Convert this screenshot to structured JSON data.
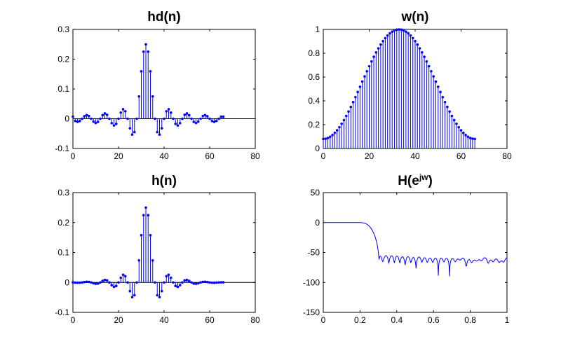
{
  "chart_data": [
    {
      "type": "stem",
      "title": "hd(n)",
      "xlim": [
        0,
        80
      ],
      "ylim": [
        -0.1,
        0.3
      ],
      "xticks": [
        "0",
        "20",
        "40",
        "60",
        "80"
      ],
      "yticks": [
        "-0.1",
        "0",
        "0.1",
        "0.2",
        "0.3"
      ],
      "xtick_values": [
        0,
        20,
        40,
        60,
        80
      ],
      "ytick_values": [
        -0.1,
        0,
        0.1,
        0.2,
        0.3
      ],
      "n_start": 0,
      "values": [
        0.0068,
        -0.0073,
        -0.0106,
        -0.0078,
        0,
        0.0083,
        0.0122,
        0.009,
        0,
        -0.0098,
        -0.0145,
        -0.0107,
        0,
        0.0118,
        0.0177,
        0.0132,
        0,
        -0.015,
        -0.0227,
        -0.0173,
        0,
        0.0205,
        0.0318,
        0.025,
        0,
        -0.0322,
        -0.0531,
        -0.045,
        0,
        0.075,
        0.1592,
        0.2251,
        0.25,
        0.2251,
        0.1592,
        0.075,
        0,
        -0.045,
        -0.0531,
        -0.0322,
        0,
        0.025,
        0.0318,
        0.0205,
        0,
        -0.0173,
        -0.0227,
        -0.015,
        0,
        0.0132,
        0.0177,
        0.0118,
        0,
        -0.0107,
        -0.0145,
        -0.0098,
        0,
        0.009,
        0.0122,
        0.0083,
        0,
        -0.0078,
        -0.0106,
        -0.0073,
        0,
        0.0068,
        0.0068
      ],
      "color": "#0000ff"
    },
    {
      "type": "stem",
      "title": "w(n)",
      "xlim": [
        0,
        80
      ],
      "ylim": [
        0,
        1
      ],
      "xticks": [
        "0",
        "20",
        "40",
        "60",
        "80"
      ],
      "yticks": [
        "0",
        "0.2",
        "0.4",
        "0.6",
        "0.8",
        "1"
      ],
      "xtick_values": [
        0,
        20,
        40,
        60,
        80
      ],
      "ytick_values": [
        0,
        0.2,
        0.4,
        0.6,
        0.8,
        1
      ],
      "n_start": 0,
      "values": [
        0.08,
        0.0821,
        0.0883,
        0.0986,
        0.113,
        0.1311,
        0.153,
        0.1784,
        0.2071,
        0.2388,
        0.2732,
        0.31,
        0.3489,
        0.3896,
        0.4316,
        0.4745,
        0.5181,
        0.5619,
        0.6055,
        0.6484,
        0.6904,
        0.7311,
        0.77,
        0.8068,
        0.8412,
        0.8729,
        0.9016,
        0.927,
        0.9489,
        0.967,
        0.9814,
        0.9917,
        0.9979,
        1.0,
        0.9979,
        0.9917,
        0.9814,
        0.967,
        0.9489,
        0.927,
        0.9016,
        0.8729,
        0.8412,
        0.8068,
        0.77,
        0.7311,
        0.6904,
        0.6484,
        0.6055,
        0.5619,
        0.5181,
        0.4745,
        0.4316,
        0.3896,
        0.3489,
        0.31,
        0.2732,
        0.2388,
        0.2071,
        0.1784,
        0.153,
        0.1311,
        0.113,
        0.0986,
        0.0883,
        0.0821,
        0.08
      ],
      "color": "#0000ff"
    },
    {
      "type": "stem",
      "title": "h(n)",
      "xlim": [
        0,
        80
      ],
      "ylim": [
        -0.1,
        0.3
      ],
      "xticks": [
        "0",
        "20",
        "40",
        "60",
        "80"
      ],
      "yticks": [
        "-0.1",
        "0",
        "0.1",
        "0.2",
        "0.3"
      ],
      "xtick_values": [
        0,
        20,
        40,
        60,
        80
      ],
      "ytick_values": [
        -0.1,
        0,
        0.1,
        0.2,
        0.3
      ],
      "n_start": 0,
      "values": [
        0.0005,
        -0.0006,
        -0.001,
        -0.0009,
        0,
        0.0013,
        0.0022,
        0.0019,
        0,
        -0.0027,
        -0.0045,
        -0.0037,
        0,
        0.0051,
        0.0084,
        0.0068,
        0,
        -0.0091,
        -0.0147,
        -0.0119,
        0,
        0.0158,
        0.0257,
        0.021,
        0,
        -0.029,
        -0.0492,
        -0.0427,
        0,
        0.0736,
        0.1579,
        0.2246,
        0.25,
        0.2246,
        0.1579,
        0.0736,
        0,
        -0.0427,
        -0.0492,
        -0.029,
        0,
        0.021,
        0.0257,
        0.0158,
        0,
        -0.0119,
        -0.0147,
        -0.0091,
        0,
        0.0068,
        0.0084,
        0.0051,
        0,
        -0.0037,
        -0.0045,
        -0.0027,
        0,
        0.0019,
        0.0022,
        0.0013,
        0,
        -0.0009,
        -0.001,
        -0.0006,
        0,
        0.0005,
        0.0005
      ],
      "color": "#0000ff"
    },
    {
      "type": "line",
      "title": "H(e",
      "title_sup": "jw",
      "title_close": ")",
      "xlim": [
        0,
        1
      ],
      "ylim": [
        -150,
        50
      ],
      "xticks": [
        "0",
        "0.2",
        "0.4",
        "0.6",
        "0.8",
        "1"
      ],
      "yticks": [
        "-150",
        "-100",
        "-50",
        "0",
        "50"
      ],
      "xtick_values": [
        0,
        0.2,
        0.4,
        0.6,
        0.8,
        1
      ],
      "ytick_values": [
        -150,
        -100,
        -50,
        0,
        50
      ],
      "x_label_meaning": "normalized frequency (w/pi)",
      "y_meaning": "magnitude in dB of DTFT of h(n)",
      "points": 512,
      "color": "#0000ff"
    }
  ]
}
